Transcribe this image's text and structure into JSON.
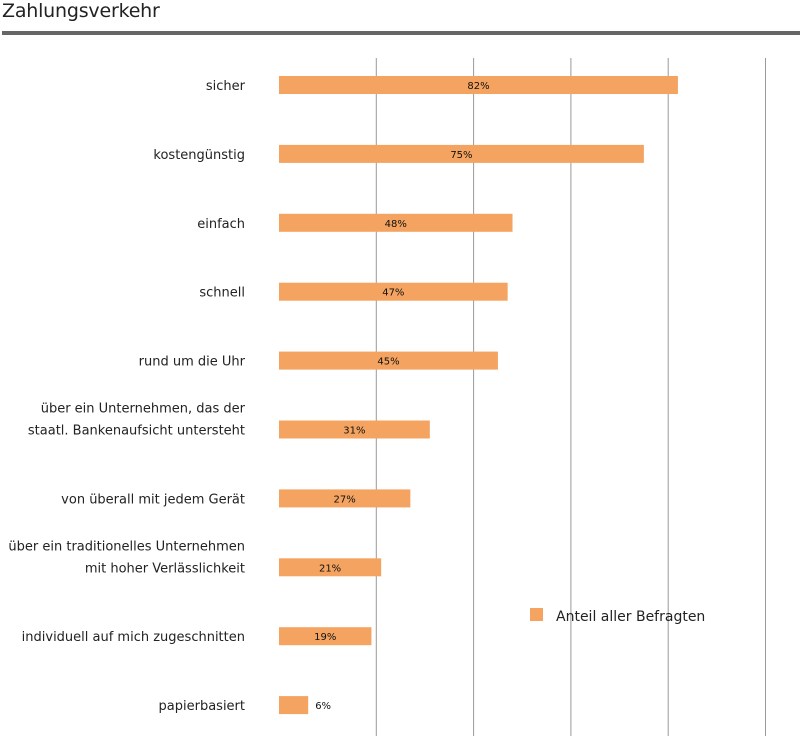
{
  "title": "Zahlungsverkehr",
  "colors": {
    "bar": "#F4A460",
    "grid": "#999999",
    "rule": "#666666"
  },
  "legend": {
    "label": "Anteil aller Befragten"
  },
  "chart_data": {
    "type": "bar",
    "orientation": "horizontal",
    "title": "Zahlungsverkehr",
    "xlabel": "",
    "ylabel": "",
    "xlim": [
      0,
      100
    ],
    "grid": true,
    "legend_position": "bottom-right",
    "series": [
      {
        "name": "Anteil aller Befragten",
        "color": "#F4A460"
      }
    ],
    "items": [
      {
        "lines": [
          "sicher"
        ],
        "value": 82,
        "label": "82%"
      },
      {
        "lines": [
          "kostengünstig"
        ],
        "value": 75,
        "label": "75%"
      },
      {
        "lines": [
          "einfach"
        ],
        "value": 48,
        "label": "48%"
      },
      {
        "lines": [
          "schnell"
        ],
        "value": 47,
        "label": "47%"
      },
      {
        "lines": [
          "rund um die Uhr"
        ],
        "value": 45,
        "label": "45%"
      },
      {
        "lines": [
          "über ein Unternehmen, das der",
          "staatl. Bankenaufsicht untersteht"
        ],
        "value": 31,
        "label": "31%"
      },
      {
        "lines": [
          "von überall mit jedem Gerät"
        ],
        "value": 27,
        "label": "27%"
      },
      {
        "lines": [
          "über ein traditionelles Unternehmen",
          "mit hoher Verlässlichkeit"
        ],
        "value": 21,
        "label": "21%"
      },
      {
        "lines": [
          "individuell auf mich zugeschnitten"
        ],
        "value": 19,
        "label": "19%"
      },
      {
        "lines": [
          "papierbasiert"
        ],
        "value": 6,
        "label": "6%"
      }
    ]
  }
}
